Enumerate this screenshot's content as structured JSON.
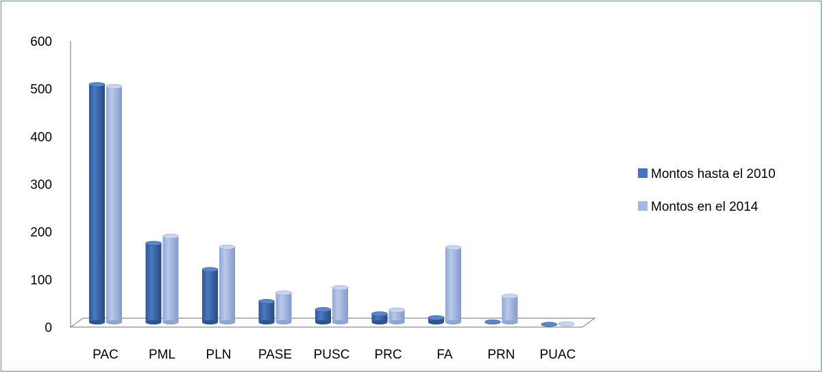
{
  "chart_data": {
    "type": "bar",
    "categories": [
      "PAC",
      "PML",
      "PLN",
      "PASE",
      "PUSC",
      "PRC",
      "FA",
      "PRN",
      "PUAC"
    ],
    "series": [
      {
        "name": "Montos hasta el 2010",
        "values": [
          503,
          170,
          115,
          48,
          31,
          22,
          14,
          5,
          0
        ],
        "color": "#4472c4"
      },
      {
        "name": "Montos en el 2014",
        "values": [
          499,
          185,
          162,
          66,
          77,
          30,
          161,
          59,
          1
        ],
        "color": "#a5b8e0"
      }
    ],
    "yticks": [
      0,
      100,
      200,
      300,
      400,
      500,
      600
    ],
    "ylim": [
      0,
      600
    ],
    "grid": false,
    "legend_position": "right",
    "style": "3d-column"
  }
}
